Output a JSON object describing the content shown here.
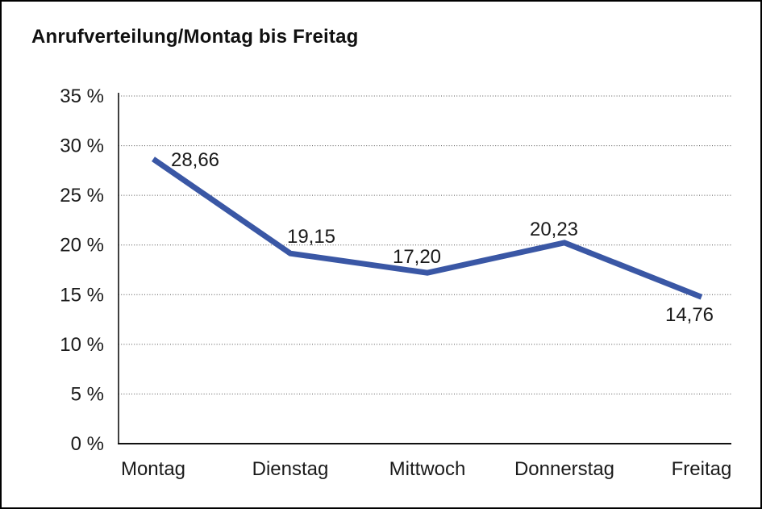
{
  "window": {
    "background": "#ffffff",
    "border_color": "#000000"
  },
  "chart_data": {
    "type": "line",
    "title": "Anrufverteilung/Montag bis Freitag",
    "categories": [
      "Montag",
      "Dienstag",
      "Mittwoch",
      "Donnerstag",
      "Freitag"
    ],
    "series": [
      {
        "name": "Anrufverteilung",
        "values": [
          28.66,
          19.15,
          17.2,
          20.23,
          14.76
        ],
        "point_labels": [
          "28,66",
          "19,15",
          "17,20",
          "20,23",
          "14,76"
        ]
      }
    ],
    "xlabel": "",
    "ylabel": "",
    "ylim": [
      0,
      35
    ],
    "y_tick_values": [
      35,
      30,
      25,
      20,
      15,
      10,
      5,
      0
    ],
    "y_tick_labels": [
      "35 %",
      "30 %",
      "25 %",
      "20 %",
      "15 %",
      "10 %",
      "5 %",
      "0 %"
    ],
    "grid": "horizontal-dotted",
    "legend": "none",
    "line_color": "#3a57a5",
    "grid_color": "#555555",
    "axis_color": "#111111",
    "text_color": "#1a1a1a"
  }
}
